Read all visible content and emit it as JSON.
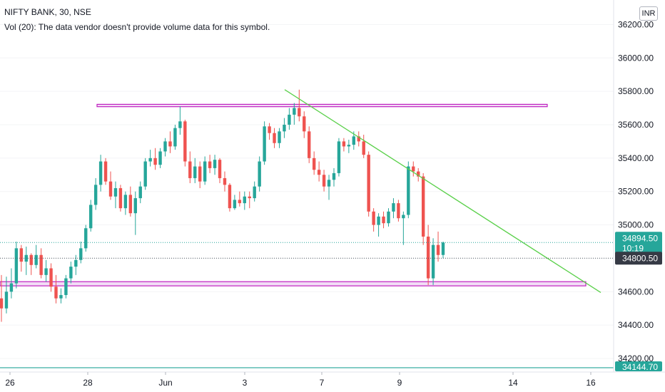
{
  "header": {
    "symbol_line": "NIFTY BANK, 30, NSE",
    "volume_line": "Vol (20): The data vendor doesn't provide volume data for this symbol."
  },
  "currency_button": "INR",
  "colors": {
    "up": "#26a69a",
    "down": "#ef5350",
    "trendline": "#5ad04a",
    "zone": "#c020c0",
    "last_price_bg": "#26a69a",
    "crosshair_bg": "#363a45"
  },
  "price_tags": {
    "last_price": "34894.50",
    "countdown": "10:19",
    "crosshair_price": "34800.50",
    "bottom_price": "34144.70"
  },
  "chart_data": {
    "type": "candlestick",
    "symbol": "NIFTY BANK",
    "interval": "30",
    "exchange": "NSE",
    "ylim": [
      34150,
      36250
    ],
    "y_ticks": [
      34200,
      34400,
      34600,
      34800,
      35000,
      35200,
      35400,
      35600,
      35800,
      36000,
      36200
    ],
    "x_ticks": [
      "26",
      "28",
      "Jun",
      "3",
      "7",
      "9",
      "14",
      "16"
    ],
    "last_price": 34894.5,
    "horizontal_zones": [
      {
        "from": 35708,
        "to": 35722
      },
      {
        "from": 34635,
        "to": 34660
      }
    ],
    "trendline": {
      "start": {
        "x": "Jun 4",
        "y": 35810
      },
      "end": {
        "x": "Jun 16",
        "y": 34595
      }
    },
    "candles": [
      [
        34560,
        34700,
        34420,
        34500
      ],
      [
        34500,
        34690,
        34470,
        34600
      ],
      [
        34600,
        34740,
        34560,
        34650
      ],
      [
        34650,
        34900,
        34620,
        34860
      ],
      [
        34860,
        34880,
        34720,
        34780
      ],
      [
        34780,
        34870,
        34700,
        34820
      ],
      [
        34820,
        34830,
        34700,
        34760
      ],
      [
        34760,
        34880,
        34740,
        34820
      ],
      [
        34820,
        34860,
        34680,
        34700
      ],
      [
        34700,
        34790,
        34660,
        34740
      ],
      [
        34740,
        34770,
        34600,
        34630
      ],
      [
        34630,
        34700,
        34530,
        34560
      ],
      [
        34560,
        34620,
        34530,
        34580
      ],
      [
        34580,
        34700,
        34560,
        34680
      ],
      [
        34680,
        34780,
        34650,
        34750
      ],
      [
        34750,
        34820,
        34700,
        34790
      ],
      [
        34790,
        34900,
        34770,
        34860
      ],
      [
        34860,
        35000,
        34840,
        34980
      ],
      [
        34980,
        35150,
        34960,
        35120
      ],
      [
        35120,
        35280,
        35090,
        35240
      ],
      [
        35240,
        35420,
        35200,
        35380
      ],
      [
        35380,
        35400,
        35240,
        35260
      ],
      [
        35260,
        35320,
        35150,
        35170
      ],
      [
        35170,
        35260,
        35100,
        35220
      ],
      [
        35220,
        35240,
        35080,
        35100
      ],
      [
        35100,
        35200,
        35060,
        35180
      ],
      [
        35180,
        35230,
        35050,
        35070
      ],
      [
        35070,
        35200,
        34940,
        35160
      ],
      [
        35160,
        35260,
        35130,
        35230
      ],
      [
        35230,
        35400,
        35210,
        35380
      ],
      [
        35380,
        35450,
        35350,
        35400
      ],
      [
        35400,
        35460,
        35330,
        35360
      ],
      [
        35360,
        35460,
        35340,
        35440
      ],
      [
        35440,
        35520,
        35410,
        35500
      ],
      [
        35500,
        35560,
        35430,
        35470
      ],
      [
        35470,
        35600,
        35450,
        35580
      ],
      [
        35580,
        35710,
        35540,
        35620
      ],
      [
        35620,
        35630,
        35350,
        35380
      ],
      [
        35380,
        35440,
        35250,
        35280
      ],
      [
        35280,
        35400,
        35250,
        35350
      ],
      [
        35350,
        35380,
        35220,
        35260
      ],
      [
        35260,
        35410,
        35240,
        35380
      ],
      [
        35380,
        35420,
        35310,
        35340
      ],
      [
        35340,
        35420,
        35300,
        35390
      ],
      [
        35390,
        35400,
        35250,
        35280
      ],
      [
        35280,
        35320,
        35200,
        35240
      ],
      [
        35240,
        35250,
        35080,
        35100
      ],
      [
        35100,
        35180,
        35090,
        35150
      ],
      [
        35150,
        35200,
        35110,
        35130
      ],
      [
        35130,
        35200,
        35090,
        35170
      ],
      [
        35170,
        35200,
        35100,
        35160
      ],
      [
        35160,
        35260,
        35140,
        35230
      ],
      [
        35230,
        35410,
        35200,
        35380
      ],
      [
        35380,
        35620,
        35360,
        35590
      ],
      [
        35590,
        35610,
        35510,
        35550
      ],
      [
        35550,
        35580,
        35460,
        35490
      ],
      [
        35490,
        35580,
        35460,
        35560
      ],
      [
        35560,
        35640,
        35520,
        35600
      ],
      [
        35600,
        35700,
        35570,
        35660
      ],
      [
        35660,
        35730,
        35600,
        35700
      ],
      [
        35700,
        35810,
        35620,
        35650
      ],
      [
        35650,
        35680,
        35520,
        35560
      ],
      [
        35560,
        35590,
        35370,
        35400
      ],
      [
        35400,
        35440,
        35300,
        35330
      ],
      [
        35330,
        35380,
        35260,
        35300
      ],
      [
        35300,
        35330,
        35200,
        35230
      ],
      [
        35230,
        35300,
        35150,
        35270
      ],
      [
        35270,
        35340,
        35230,
        35310
      ],
      [
        35310,
        35520,
        35290,
        35500
      ],
      [
        35500,
        35520,
        35440,
        35470
      ],
      [
        35470,
        35510,
        35430,
        35480
      ],
      [
        35480,
        35560,
        35450,
        35530
      ],
      [
        35530,
        35560,
        35470,
        35500
      ],
      [
        35500,
        35540,
        35400,
        35420
      ],
      [
        35420,
        35440,
        35050,
        35080
      ],
      [
        35080,
        35100,
        34960,
        35000
      ],
      [
        35000,
        35070,
        34930,
        35050
      ],
      [
        35050,
        35080,
        34980,
        35010
      ],
      [
        35010,
        35100,
        34990,
        35080
      ],
      [
        35080,
        35160,
        35040,
        35130
      ],
      [
        35130,
        35150,
        35020,
        35040
      ],
      [
        35040,
        35080,
        34880,
        35060
      ],
      [
        35060,
        35380,
        35040,
        35350
      ],
      [
        35350,
        35380,
        35290,
        35320
      ],
      [
        35320,
        35340,
        35260,
        35290
      ],
      [
        35290,
        35310,
        34880,
        34930
      ],
      [
        34930,
        35000,
        34640,
        34680
      ],
      [
        34680,
        34920,
        34640,
        34880
      ],
      [
        34880,
        34960,
        34780,
        34820
      ],
      [
        34820,
        34900,
        34800,
        34894.5
      ]
    ]
  }
}
